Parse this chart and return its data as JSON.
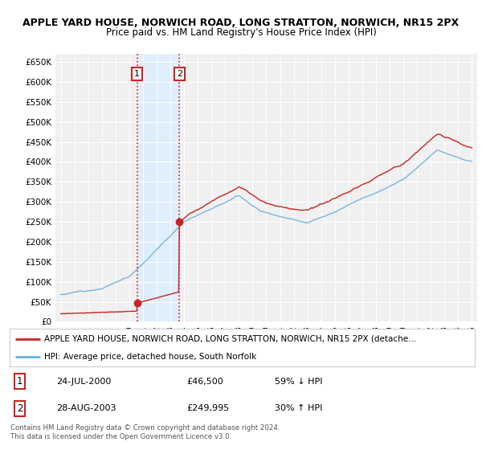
{
  "title_line1": "APPLE YARD HOUSE, NORWICH ROAD, LONG STRATTON, NORWICH, NR15 2PX",
  "title_line2": "Price paid vs. HM Land Registry's House Price Index (HPI)",
  "ylim": [
    0,
    670000
  ],
  "yticks": [
    0,
    50000,
    100000,
    150000,
    200000,
    250000,
    300000,
    350000,
    400000,
    450000,
    500000,
    550000,
    600000,
    650000
  ],
  "ytick_labels": [
    "£0",
    "£50K",
    "£100K",
    "£150K",
    "£200K",
    "£250K",
    "£300K",
    "£350K",
    "£400K",
    "£450K",
    "£500K",
    "£550K",
    "£600K",
    "£650K"
  ],
  "hpi_color": "#6ab0de",
  "price_color": "#cc2222",
  "transaction_1_date": 2000.56,
  "transaction_1_value": 46500,
  "transaction_2_date": 2003.65,
  "transaction_2_value": 249995,
  "vline_color": "#cc2222",
  "shade_color": "#ddeeff",
  "legend_line1": "APPLE YARD HOUSE, NORWICH ROAD, LONG STRATTON, NORWICH, NR15 2PX (detache…",
  "legend_line2": "HPI: Average price, detached house, South Norfolk",
  "table_row1": [
    "1",
    "24-JUL-2000",
    "£46,500",
    "59% ↓ HPI"
  ],
  "table_row2": [
    "2",
    "28-AUG-2003",
    "£249,995",
    "30% ↑ HPI"
  ],
  "footer": "Contains HM Land Registry data © Crown copyright and database right 2024.\nThis data is licensed under the Open Government Licence v3.0.",
  "background_color": "#ffffff",
  "plot_bg_color": "#f0f0f0"
}
